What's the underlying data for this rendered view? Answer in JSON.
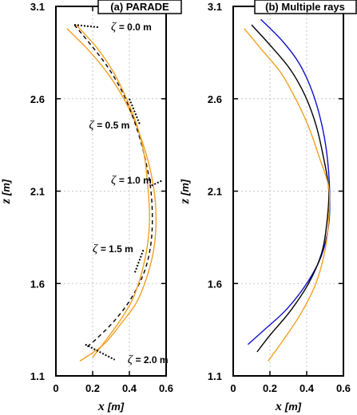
{
  "chart_data": [
    {
      "type": "line",
      "title": "(a) PARADE",
      "xlabel_var": "x",
      "xlabel_unit": "[m]",
      "ylabel_var": "z",
      "ylabel_unit": "[m]",
      "xlim": [
        0,
        0.6
      ],
      "ylim": [
        1.1,
        3.1
      ],
      "xticks": [
        "0",
        "0.2",
        "0.4",
        "0.6"
      ],
      "yticks": [
        "1.1",
        "1.6",
        "2.1",
        "2.6",
        "3.1"
      ],
      "grid": true,
      "series": [
        {
          "color": "#f0a020",
          "dash": false,
          "x": [
            0.06,
            0.18,
            0.28,
            0.37,
            0.44,
            0.5,
            0.535,
            0.545,
            0.535,
            0.5,
            0.44,
            0.36,
            0.26,
            0.13
          ],
          "y": [
            2.98,
            2.86,
            2.74,
            2.6,
            2.45,
            2.27,
            2.1,
            1.95,
            1.8,
            1.65,
            1.5,
            1.39,
            1.27,
            1.18
          ]
        },
        {
          "color": "#000000",
          "dash": true,
          "x": [
            0.1,
            0.2,
            0.29,
            0.37,
            0.43,
            0.48,
            0.515,
            0.525,
            0.515,
            0.48,
            0.41,
            0.32,
            0.22,
            0.16
          ],
          "y": [
            3.0,
            2.88,
            2.76,
            2.62,
            2.47,
            2.3,
            2.12,
            1.95,
            1.8,
            1.66,
            1.52,
            1.4,
            1.3,
            1.25
          ]
        },
        {
          "color": "#f0a020",
          "dash": false,
          "x": [
            0.11,
            0.22,
            0.31,
            0.38,
            0.44,
            0.48,
            0.5,
            0.51,
            0.5,
            0.47,
            0.42,
            0.35,
            0.27,
            0.2
          ],
          "y": [
            3.0,
            2.88,
            2.75,
            2.61,
            2.46,
            2.3,
            2.13,
            1.97,
            1.82,
            1.67,
            1.52,
            1.4,
            1.29,
            1.2
          ]
        }
      ],
      "annotations": [
        {
          "text": "= 0.0 m",
          "x": 0.1,
          "y": 3.0,
          "tx": 0.3,
          "ty": 2.97
        },
        {
          "text": "= 0.5 m",
          "x": 0.4,
          "y": 2.6,
          "tx": 0.18,
          "ty": 2.44
        },
        {
          "text": "= 1.0 m",
          "x": 0.52,
          "y": 2.13,
          "tx": 0.3,
          "ty": 2.14
        },
        {
          "text": "= 1.5 m",
          "x": 0.43,
          "y": 1.66,
          "tx": 0.2,
          "ty": 1.77
        },
        {
          "text": "= 2.0 m",
          "x": 0.16,
          "y": 1.27,
          "tx": 0.39,
          "ty": 1.17
        }
      ]
    },
    {
      "type": "line",
      "title": "(b) Multiple rays",
      "xlabel_var": "x",
      "xlabel_unit": "[m]",
      "ylabel_var": "z",
      "ylabel_unit": "[m]",
      "xlim": [
        0,
        0.6
      ],
      "ylim": [
        1.1,
        3.1
      ],
      "xticks": [
        "0",
        "0.2",
        "0.4",
        "0.6"
      ],
      "yticks": [
        "1.1",
        "1.6",
        "2.1",
        "2.6",
        "3.1"
      ],
      "grid": true,
      "series": [
        {
          "color": "#1010d0",
          "dash": false,
          "x": [
            0.15,
            0.27,
            0.36,
            0.43,
            0.48,
            0.51,
            0.525,
            0.52,
            0.48,
            0.4,
            0.29,
            0.17,
            0.08
          ],
          "y": [
            3.03,
            2.91,
            2.79,
            2.64,
            2.47,
            2.3,
            2.1,
            1.92,
            1.75,
            1.6,
            1.46,
            1.35,
            1.27
          ]
        },
        {
          "color": "#000000",
          "dash": false,
          "x": [
            0.1,
            0.21,
            0.31,
            0.39,
            0.45,
            0.49,
            0.52,
            0.51,
            0.48,
            0.41,
            0.31,
            0.2,
            0.13
          ],
          "y": [
            3.0,
            2.88,
            2.76,
            2.62,
            2.46,
            2.29,
            2.11,
            1.93,
            1.76,
            1.6,
            1.45,
            1.32,
            1.23
          ]
        },
        {
          "color": "#f0a020",
          "dash": false,
          "x": [
            0.06,
            0.16,
            0.26,
            0.34,
            0.41,
            0.47,
            0.52,
            0.52,
            0.5,
            0.45,
            0.37,
            0.27,
            0.19
          ],
          "y": [
            2.98,
            2.86,
            2.74,
            2.6,
            2.45,
            2.28,
            2.12,
            1.95,
            1.78,
            1.6,
            1.44,
            1.29,
            1.18
          ]
        }
      ],
      "annotations": []
    }
  ]
}
